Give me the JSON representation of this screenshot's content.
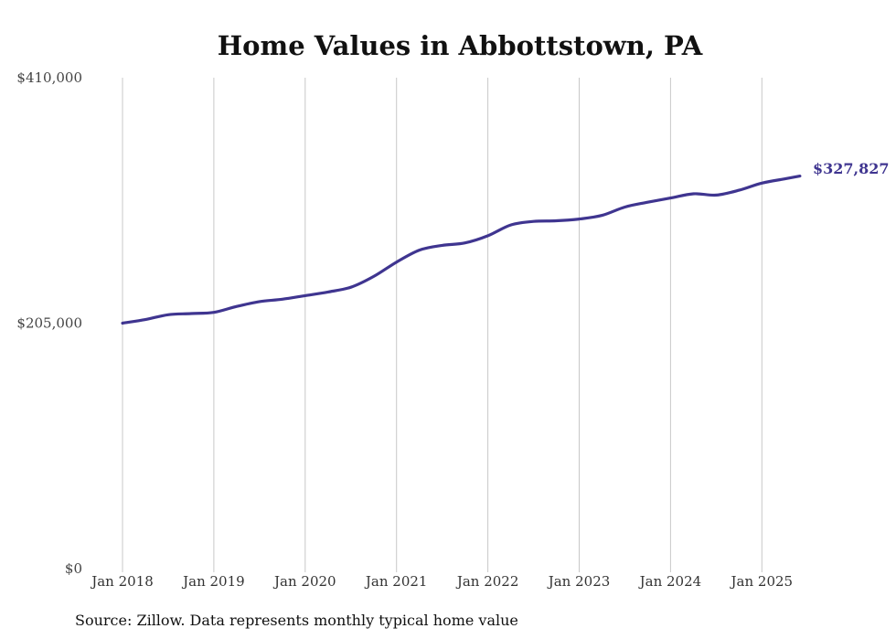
{
  "chart_data": {
    "type": "line",
    "title": "Home Values in Abbottstown, PA",
    "xlabel": "",
    "ylabel": "",
    "ylim": [
      0,
      410000
    ],
    "y_ticks": [
      {
        "value": 0,
        "label": "$0"
      },
      {
        "value": 205000,
        "label": "$205,000"
      },
      {
        "value": 410000,
        "label": "$410,000"
      }
    ],
    "x_ticks": [
      "Jan 2018",
      "Jan 2019",
      "Jan 2020",
      "Jan 2021",
      "Jan 2022",
      "Jan 2023",
      "Jan 2024",
      "Jan 2025"
    ],
    "grid": "vertical",
    "end_label": "$327,827",
    "colors": {
      "line": "#3f3590",
      "grid": "#c8c8c8",
      "text": "#333333"
    },
    "series": [
      {
        "x": [
          "2018-01",
          "2018-04",
          "2018-07",
          "2018-10",
          "2019-01",
          "2019-04",
          "2019-07",
          "2019-10",
          "2020-01",
          "2020-04",
          "2020-07",
          "2020-10",
          "2021-01",
          "2021-04",
          "2021-07",
          "2021-10",
          "2022-01",
          "2022-04",
          "2022-07",
          "2022-10",
          "2023-01",
          "2023-04",
          "2023-07",
          "2023-10",
          "2024-01",
          "2024-04",
          "2024-07",
          "2024-10",
          "2025-01",
          "2025-04",
          "2025-06"
        ],
        "values": [
          205000,
          208000,
          212000,
          213000,
          214000,
          219000,
          223000,
          225000,
          228000,
          231000,
          235000,
          244000,
          256000,
          266000,
          270000,
          272000,
          278000,
          287000,
          290000,
          290500,
          292000,
          295000,
          302000,
          306000,
          309500,
          313000,
          312000,
          316000,
          322000,
          325500,
          327827
        ]
      }
    ]
  },
  "source": "Source: Zillow. Data represents monthly typical home value"
}
